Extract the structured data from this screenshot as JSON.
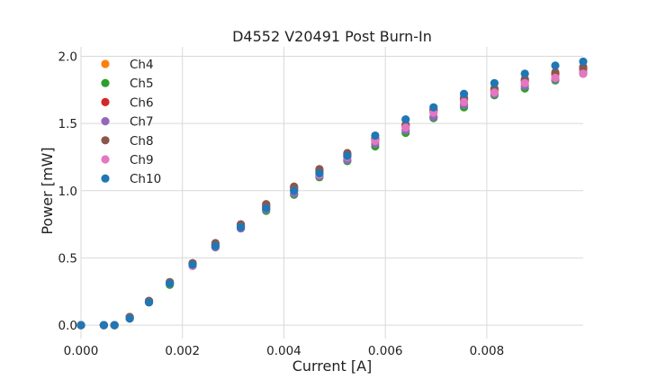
{
  "chart_data": {
    "type": "scatter",
    "title": "D4552 V20491 Post Burn-In",
    "xlabel": "Current [A]",
    "ylabel": "Power [mW]",
    "xlim": [
      0,
      0.0099
    ],
    "ylim": [
      -0.1,
      2.07
    ],
    "x_ticks": [
      0,
      0.002,
      0.004,
      0.006,
      0.008
    ],
    "x_tick_labels": [
      "0.000",
      "0.002",
      "0.004",
      "0.006",
      "0.008"
    ],
    "y_ticks": [
      0,
      0.5,
      1.0,
      1.5,
      2.0
    ],
    "y_tick_labels": [
      "0.0",
      "0.5",
      "1.0",
      "1.5",
      "2.0"
    ],
    "grid": true,
    "legend_position": "top-left",
    "x": [
      0,
      0.00045,
      0.00066,
      0.00096,
      0.00134,
      0.00175,
      0.0022,
      0.00265,
      0.00315,
      0.00365,
      0.0042,
      0.0047,
      0.00525,
      0.0058,
      0.0064,
      0.00695,
      0.00755,
      0.00815,
      0.00875,
      0.00935,
      0.0099
    ],
    "series": [
      {
        "name": "Ch4",
        "color": "#ff7f0e",
        "values": [
          0,
          0,
          0,
          0.06,
          0.18,
          0.32,
          0.46,
          0.6,
          0.74,
          0.88,
          1.01,
          1.14,
          1.26,
          1.37,
          1.48,
          1.59,
          1.67,
          1.74,
          1.81,
          1.86,
          1.9
        ]
      },
      {
        "name": "Ch5",
        "color": "#2ca02c",
        "values": [
          0,
          0,
          0,
          0.05,
          0.17,
          0.3,
          0.44,
          0.58,
          0.72,
          0.85,
          0.97,
          1.1,
          1.22,
          1.33,
          1.43,
          1.54,
          1.62,
          1.71,
          1.76,
          1.82,
          1.87
        ]
      },
      {
        "name": "Ch6",
        "color": "#d62728",
        "values": [
          0,
          0,
          0,
          0.06,
          0.18,
          0.31,
          0.46,
          0.6,
          0.74,
          0.89,
          1.02,
          1.15,
          1.27,
          1.38,
          1.49,
          1.6,
          1.68,
          1.75,
          1.82,
          1.87,
          1.91
        ]
      },
      {
        "name": "Ch7",
        "color": "#9467bd",
        "values": [
          0,
          0,
          0,
          0.05,
          0.17,
          0.31,
          0.45,
          0.58,
          0.72,
          0.86,
          0.98,
          1.11,
          1.23,
          1.35,
          1.45,
          1.55,
          1.64,
          1.72,
          1.78,
          1.83,
          1.88
        ]
      },
      {
        "name": "Ch8",
        "color": "#8c564b",
        "values": [
          0,
          0,
          0,
          0.06,
          0.18,
          0.32,
          0.46,
          0.61,
          0.75,
          0.9,
          1.03,
          1.16,
          1.28,
          1.39,
          1.49,
          1.6,
          1.69,
          1.76,
          1.83,
          1.88,
          1.92
        ]
      },
      {
        "name": "Ch9",
        "color": "#e377c2",
        "values": [
          0,
          0,
          0,
          0.05,
          0.17,
          0.31,
          0.44,
          0.59,
          0.73,
          0.87,
          1.0,
          1.12,
          1.25,
          1.37,
          1.47,
          1.58,
          1.66,
          1.73,
          1.8,
          1.84,
          1.87
        ]
      },
      {
        "name": "Ch10",
        "color": "#1f77b4",
        "values": [
          0,
          0,
          0,
          0.05,
          0.17,
          0.31,
          0.45,
          0.59,
          0.73,
          0.87,
          1.0,
          1.13,
          1.26,
          1.41,
          1.53,
          1.62,
          1.72,
          1.8,
          1.87,
          1.93,
          1.96
        ]
      }
    ]
  }
}
